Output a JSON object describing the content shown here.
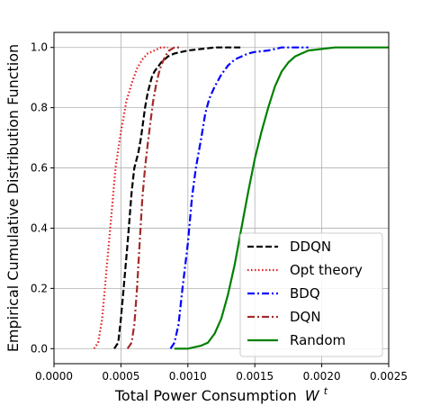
{
  "chart_data": {
    "type": "line",
    "xlabel": "Total Power Consumption",
    "xlabel_symbol": "W",
    "xlabel_superscript": "t",
    "ylabel": "Empirical Cumulative Distribution Function",
    "xlim": [
      0.0,
      0.0025
    ],
    "ylim": [
      -0.05,
      1.05
    ],
    "xticks": [
      0.0,
      0.0005,
      0.001,
      0.0015,
      0.002,
      0.0025
    ],
    "xtick_labels": [
      "0.0000",
      "0.0005",
      "0.0010",
      "0.0015",
      "0.0020",
      "0.0025"
    ],
    "yticks": [
      0.0,
      0.2,
      0.4,
      0.6,
      0.8,
      1.0
    ],
    "ytick_labels": [
      "0.0",
      "0.2",
      "0.4",
      "0.6",
      "0.8",
      "1.0"
    ],
    "grid": true,
    "legend_position": "bottom-right",
    "series": [
      {
        "name": "DDQN",
        "color": "#000000",
        "style": "dashed",
        "x": [
          0.00045,
          0.00048,
          0.0005,
          0.00052,
          0.00055,
          0.00058,
          0.0006,
          0.00063,
          0.00065,
          0.00068,
          0.0007,
          0.00073,
          0.00075,
          0.0008,
          0.00085,
          0.0009,
          0.001,
          0.0011,
          0.0012,
          0.0013,
          0.0014
        ],
        "y": [
          0.0,
          0.02,
          0.1,
          0.2,
          0.35,
          0.52,
          0.6,
          0.65,
          0.7,
          0.8,
          0.85,
          0.9,
          0.92,
          0.95,
          0.97,
          0.98,
          0.99,
          0.995,
          1.0,
          1.0,
          1.0
        ]
      },
      {
        "name": "Opt theory",
        "color": "#e31a1c",
        "style": "dotted",
        "x": [
          0.0003,
          0.00033,
          0.00036,
          0.0004,
          0.00043,
          0.00046,
          0.0005,
          0.00054,
          0.00058,
          0.00062,
          0.00066,
          0.0007,
          0.00075,
          0.0008,
          0.00085
        ],
        "y": [
          0.0,
          0.02,
          0.1,
          0.3,
          0.45,
          0.6,
          0.72,
          0.82,
          0.88,
          0.93,
          0.96,
          0.98,
          0.99,
          1.0,
          1.0
        ]
      },
      {
        "name": "BDQ",
        "color": "#0000ff",
        "style": "dashdot",
        "x": [
          0.00087,
          0.0009,
          0.00093,
          0.00096,
          0.001,
          0.00103,
          0.00106,
          0.0011,
          0.00113,
          0.00116,
          0.0012,
          0.00125,
          0.0013,
          0.00135,
          0.0014,
          0.00145,
          0.0015,
          0.0016,
          0.0017,
          0.0018,
          0.0019
        ],
        "y": [
          0.0,
          0.02,
          0.08,
          0.2,
          0.35,
          0.5,
          0.6,
          0.7,
          0.78,
          0.83,
          0.87,
          0.91,
          0.94,
          0.96,
          0.97,
          0.98,
          0.985,
          0.99,
          1.0,
          1.0,
          1.0
        ]
      },
      {
        "name": "DQN",
        "color": "#a52a2a",
        "style": "dashdot",
        "x": [
          0.00055,
          0.00058,
          0.0006,
          0.00062,
          0.00064,
          0.00066,
          0.00068,
          0.0007,
          0.00072,
          0.00074,
          0.00076,
          0.00078,
          0.0008,
          0.00083,
          0.00086,
          0.0009,
          0.00095
        ],
        "y": [
          0.0,
          0.02,
          0.08,
          0.2,
          0.35,
          0.5,
          0.6,
          0.68,
          0.75,
          0.82,
          0.87,
          0.91,
          0.94,
          0.97,
          0.99,
          1.0,
          1.0
        ]
      },
      {
        "name": "Random",
        "color": "#008000",
        "style": "solid",
        "x": [
          0.0009,
          0.001,
          0.0011,
          0.00115,
          0.0012,
          0.00125,
          0.0013,
          0.00135,
          0.0014,
          0.00145,
          0.0015,
          0.00155,
          0.0016,
          0.00165,
          0.0017,
          0.00175,
          0.0018,
          0.00185,
          0.0019,
          0.002,
          0.0021,
          0.0022,
          0.0025
        ],
        "y": [
          0.0,
          0.0,
          0.01,
          0.02,
          0.05,
          0.1,
          0.18,
          0.28,
          0.4,
          0.52,
          0.63,
          0.72,
          0.8,
          0.87,
          0.92,
          0.95,
          0.97,
          0.98,
          0.99,
          0.995,
          1.0,
          1.0,
          1.0
        ]
      }
    ]
  }
}
